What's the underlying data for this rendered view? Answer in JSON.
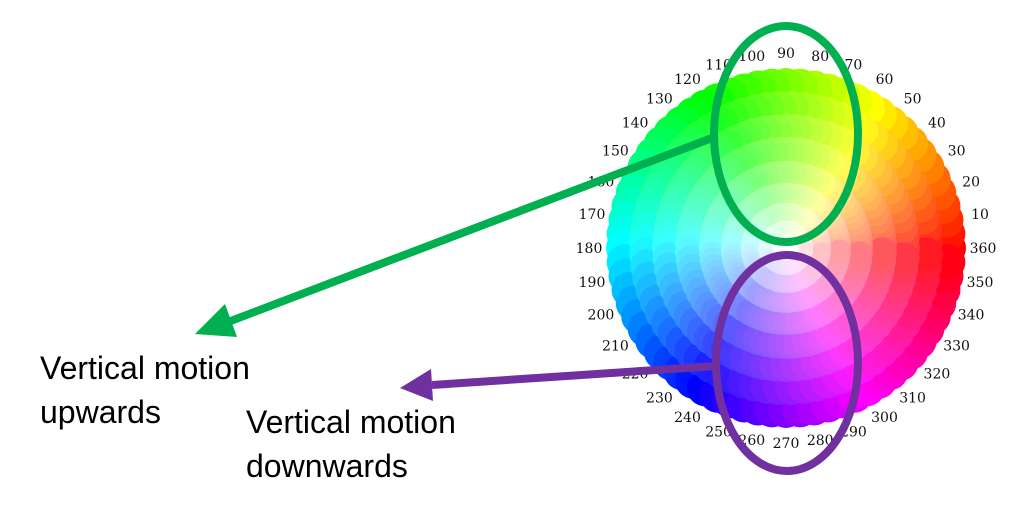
{
  "wheel": {
    "degree_labels": [
      "10",
      "20",
      "30",
      "40",
      "50",
      "60",
      "70",
      "80",
      "90",
      "100",
      "110",
      "120",
      "130",
      "140",
      "150",
      "160",
      "170",
      "180",
      "190",
      "200",
      "210",
      "220",
      "230",
      "240",
      "250",
      "260",
      "270",
      "280",
      "290",
      "300",
      "310",
      "320",
      "330",
      "340",
      "350",
      "360"
    ]
  },
  "annotations": {
    "upward": {
      "line1": "Vertical motion",
      "line2": "upwards",
      "color": "#00b050"
    },
    "downward": {
      "line1": "Vertical motion",
      "line2": "downwards",
      "color": "#7030a0"
    }
  }
}
